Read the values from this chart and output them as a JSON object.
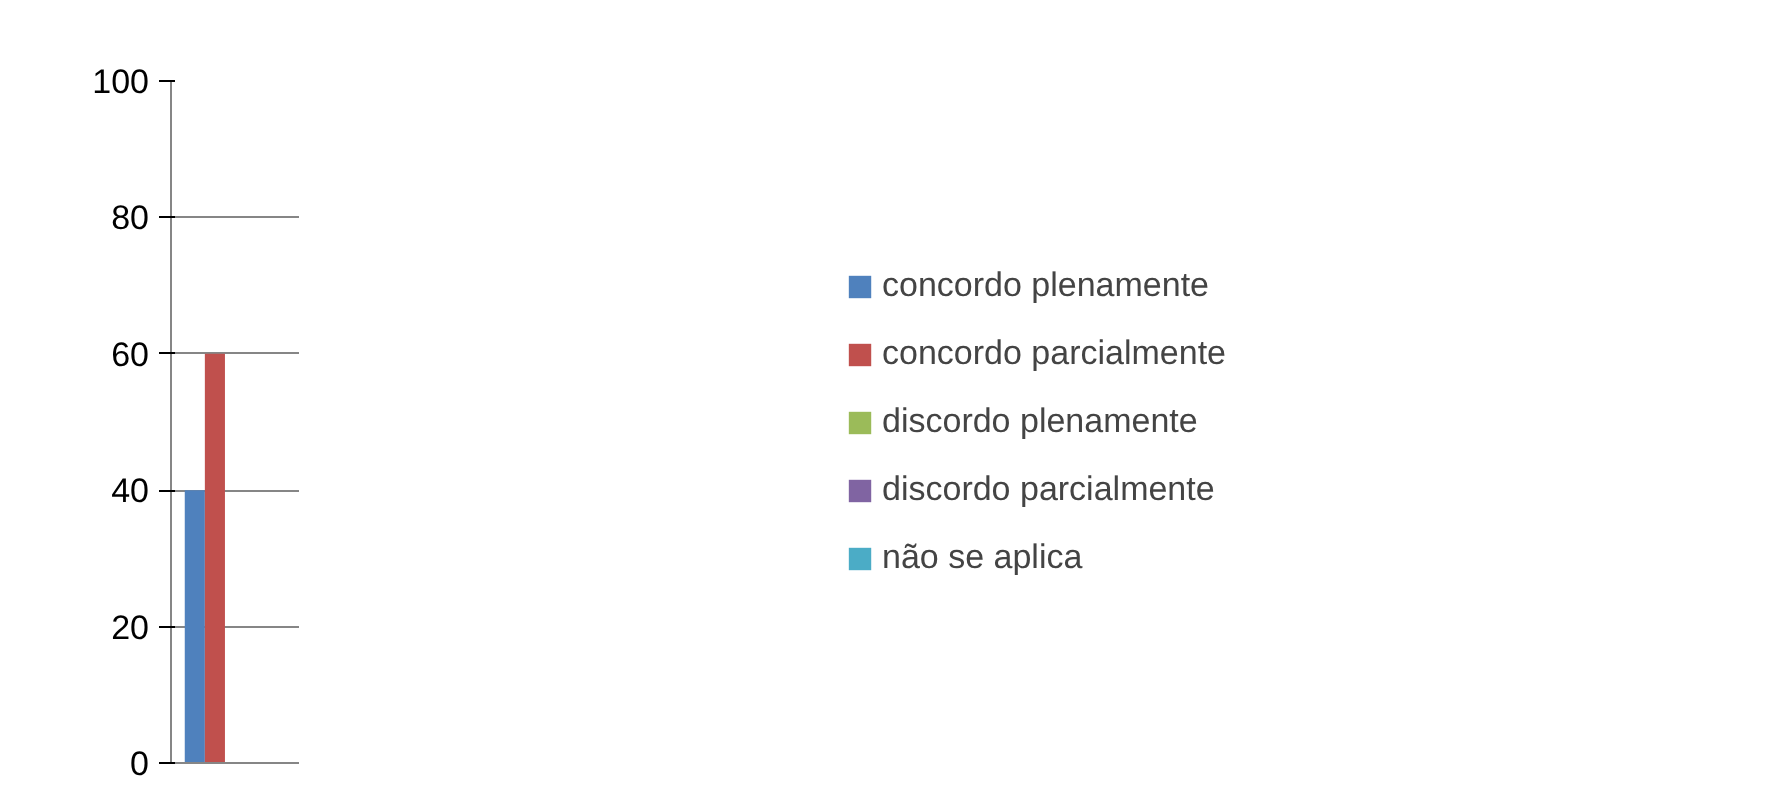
{
  "chart_data": {
    "type": "bar",
    "categories": [
      null
    ],
    "series": [
      {
        "name": "concordo plenamente",
        "color": "#4f81bd",
        "values": [
          40
        ]
      },
      {
        "name": "concordo parcialmente",
        "color": "#c0504d",
        "values": [
          60
        ]
      },
      {
        "name": "discordo plenamente",
        "color": "#9bbb59",
        "values": [
          0
        ]
      },
      {
        "name": "discordo parcialmente",
        "color": "#8064a2",
        "values": [
          0
        ]
      },
      {
        "name": "não se aplica",
        "color": "#4bacc6",
        "values": [
          0
        ]
      }
    ],
    "ylim": [
      0,
      100
    ],
    "yticks": [
      0,
      20,
      40,
      60,
      80,
      100
    ],
    "grid": "y",
    "legend": "right"
  }
}
